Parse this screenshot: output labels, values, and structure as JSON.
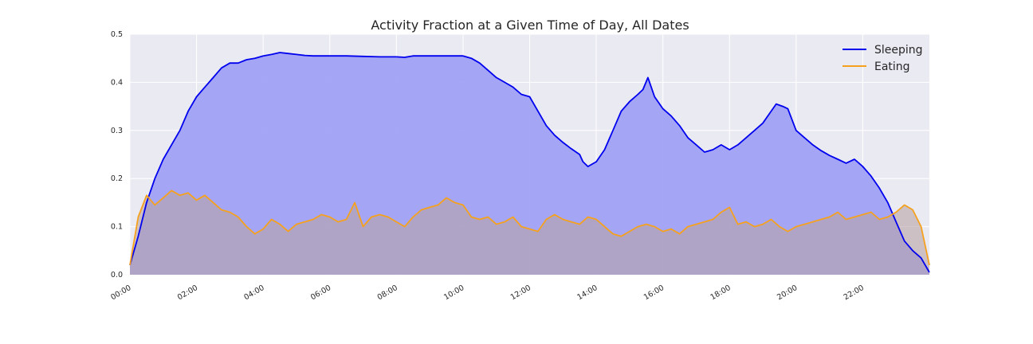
{
  "chart_data": {
    "type": "area",
    "title": "Activity Fraction at a Given Time of Day, All Dates",
    "xlabel": "",
    "ylabel": "",
    "xlim": [
      0,
      24
    ],
    "ylim": [
      0,
      0.5
    ],
    "x_ticks": [
      "00:00",
      "02:00",
      "04:00",
      "06:00",
      "08:00",
      "10:00",
      "12:00",
      "14:00",
      "16:00",
      "18:00",
      "20:00",
      "22:00"
    ],
    "y_ticks": [
      "0.0",
      "0.1",
      "0.2",
      "0.3",
      "0.4",
      "0.5"
    ],
    "grid": true,
    "legend_position": "top-right",
    "x_unit": "hours since 00:00",
    "series": [
      {
        "name": "Sleeping",
        "color": "#0000ee",
        "fill": "#a0a2f4",
        "points": [
          [
            0,
            0.02
          ],
          [
            0.25,
            0.08
          ],
          [
            0.5,
            0.15
          ],
          [
            0.75,
            0.2
          ],
          [
            1,
            0.24
          ],
          [
            1.25,
            0.27
          ],
          [
            1.5,
            0.3
          ],
          [
            1.75,
            0.34
          ],
          [
            2,
            0.37
          ],
          [
            2.25,
            0.39
          ],
          [
            2.5,
            0.41
          ],
          [
            2.75,
            0.43
          ],
          [
            3,
            0.44
          ],
          [
            3.25,
            0.44
          ],
          [
            3.5,
            0.447
          ],
          [
            3.75,
            0.45
          ],
          [
            4,
            0.455
          ],
          [
            4.25,
            0.458
          ],
          [
            4.5,
            0.462
          ],
          [
            4.75,
            0.46
          ],
          [
            5,
            0.458
          ],
          [
            5.25,
            0.456
          ],
          [
            5.5,
            0.455
          ],
          [
            6,
            0.455
          ],
          [
            6.5,
            0.455
          ],
          [
            7,
            0.454
          ],
          [
            7.5,
            0.453
          ],
          [
            8,
            0.453
          ],
          [
            8.25,
            0.452
          ],
          [
            8.5,
            0.455
          ],
          [
            9,
            0.455
          ],
          [
            9.5,
            0.455
          ],
          [
            10,
            0.455
          ],
          [
            10.25,
            0.45
          ],
          [
            10.5,
            0.44
          ],
          [
            10.75,
            0.425
          ],
          [
            11,
            0.41
          ],
          [
            11.25,
            0.4
          ],
          [
            11.5,
            0.39
          ],
          [
            11.75,
            0.375
          ],
          [
            12,
            0.37
          ],
          [
            12.25,
            0.34
          ],
          [
            12.5,
            0.31
          ],
          [
            12.75,
            0.29
          ],
          [
            13,
            0.275
          ],
          [
            13.25,
            0.262
          ],
          [
            13.5,
            0.25
          ],
          [
            13.6,
            0.235
          ],
          [
            13.75,
            0.225
          ],
          [
            14,
            0.235
          ],
          [
            14.25,
            0.26
          ],
          [
            14.5,
            0.3
          ],
          [
            14.75,
            0.34
          ],
          [
            15,
            0.36
          ],
          [
            15.25,
            0.375
          ],
          [
            15.4,
            0.385
          ],
          [
            15.55,
            0.41
          ],
          [
            15.75,
            0.37
          ],
          [
            16,
            0.345
          ],
          [
            16.25,
            0.33
          ],
          [
            16.5,
            0.31
          ],
          [
            16.75,
            0.285
          ],
          [
            17,
            0.27
          ],
          [
            17.25,
            0.255
          ],
          [
            17.5,
            0.26
          ],
          [
            17.75,
            0.27
          ],
          [
            18,
            0.26
          ],
          [
            18.25,
            0.27
          ],
          [
            18.5,
            0.285
          ],
          [
            18.75,
            0.3
          ],
          [
            19,
            0.315
          ],
          [
            19.25,
            0.34
          ],
          [
            19.4,
            0.355
          ],
          [
            19.6,
            0.35
          ],
          [
            19.75,
            0.345
          ],
          [
            20,
            0.3
          ],
          [
            20.25,
            0.285
          ],
          [
            20.5,
            0.27
          ],
          [
            20.75,
            0.258
          ],
          [
            21,
            0.248
          ],
          [
            21.25,
            0.24
          ],
          [
            21.5,
            0.232
          ],
          [
            21.75,
            0.24
          ],
          [
            22,
            0.225
          ],
          [
            22.25,
            0.205
          ],
          [
            22.5,
            0.18
          ],
          [
            22.75,
            0.15
          ],
          [
            23,
            0.11
          ],
          [
            23.25,
            0.07
          ],
          [
            23.5,
            0.05
          ],
          [
            23.75,
            0.035
          ],
          [
            24,
            0.005
          ]
        ]
      },
      {
        "name": "Eating",
        "color": "#f5a11e",
        "fill": "#b9a3a6",
        "points": [
          [
            0,
            0.02
          ],
          [
            0.25,
            0.12
          ],
          [
            0.5,
            0.165
          ],
          [
            0.75,
            0.145
          ],
          [
            1,
            0.16
          ],
          [
            1.25,
            0.175
          ],
          [
            1.5,
            0.165
          ],
          [
            1.75,
            0.17
          ],
          [
            2,
            0.155
          ],
          [
            2.25,
            0.165
          ],
          [
            2.5,
            0.15
          ],
          [
            2.75,
            0.135
          ],
          [
            3,
            0.13
          ],
          [
            3.25,
            0.12
          ],
          [
            3.5,
            0.1
          ],
          [
            3.75,
            0.085
          ],
          [
            4,
            0.095
          ],
          [
            4.25,
            0.115
          ],
          [
            4.5,
            0.105
          ],
          [
            4.75,
            0.09
          ],
          [
            5,
            0.105
          ],
          [
            5.25,
            0.11
          ],
          [
            5.5,
            0.115
          ],
          [
            5.75,
            0.125
          ],
          [
            6,
            0.12
          ],
          [
            6.25,
            0.11
          ],
          [
            6.5,
            0.115
          ],
          [
            6.75,
            0.15
          ],
          [
            7,
            0.1
          ],
          [
            7.25,
            0.12
          ],
          [
            7.5,
            0.125
          ],
          [
            7.75,
            0.12
          ],
          [
            8,
            0.11
          ],
          [
            8.25,
            0.1
          ],
          [
            8.5,
            0.12
          ],
          [
            8.75,
            0.135
          ],
          [
            9,
            0.14
          ],
          [
            9.25,
            0.145
          ],
          [
            9.5,
            0.16
          ],
          [
            9.75,
            0.15
          ],
          [
            10,
            0.145
          ],
          [
            10.25,
            0.12
          ],
          [
            10.5,
            0.115
          ],
          [
            10.75,
            0.12
          ],
          [
            11,
            0.105
          ],
          [
            11.25,
            0.11
          ],
          [
            11.5,
            0.12
          ],
          [
            11.75,
            0.1
          ],
          [
            12,
            0.095
          ],
          [
            12.25,
            0.09
          ],
          [
            12.5,
            0.115
          ],
          [
            12.75,
            0.125
          ],
          [
            13,
            0.115
          ],
          [
            13.25,
            0.11
          ],
          [
            13.5,
            0.105
          ],
          [
            13.75,
            0.12
          ],
          [
            14,
            0.115
          ],
          [
            14.25,
            0.1
          ],
          [
            14.5,
            0.085
          ],
          [
            14.75,
            0.08
          ],
          [
            15,
            0.09
          ],
          [
            15.25,
            0.1
          ],
          [
            15.5,
            0.105
          ],
          [
            15.75,
            0.1
          ],
          [
            16,
            0.09
          ],
          [
            16.25,
            0.095
          ],
          [
            16.5,
            0.085
          ],
          [
            16.75,
            0.1
          ],
          [
            17,
            0.105
          ],
          [
            17.25,
            0.11
          ],
          [
            17.5,
            0.115
          ],
          [
            17.75,
            0.13
          ],
          [
            18,
            0.14
          ],
          [
            18.25,
            0.105
          ],
          [
            18.5,
            0.11
          ],
          [
            18.75,
            0.1
          ],
          [
            19,
            0.105
          ],
          [
            19.25,
            0.115
          ],
          [
            19.5,
            0.1
          ],
          [
            19.75,
            0.09
          ],
          [
            20,
            0.1
          ],
          [
            20.25,
            0.105
          ],
          [
            20.5,
            0.11
          ],
          [
            20.75,
            0.115
          ],
          [
            21,
            0.12
          ],
          [
            21.25,
            0.13
          ],
          [
            21.5,
            0.115
          ],
          [
            21.75,
            0.12
          ],
          [
            22,
            0.125
          ],
          [
            22.25,
            0.13
          ],
          [
            22.5,
            0.115
          ],
          [
            22.75,
            0.12
          ],
          [
            23,
            0.13
          ],
          [
            23.25,
            0.145
          ],
          [
            23.5,
            0.135
          ],
          [
            23.75,
            0.1
          ],
          [
            24,
            0.02
          ]
        ]
      }
    ]
  }
}
